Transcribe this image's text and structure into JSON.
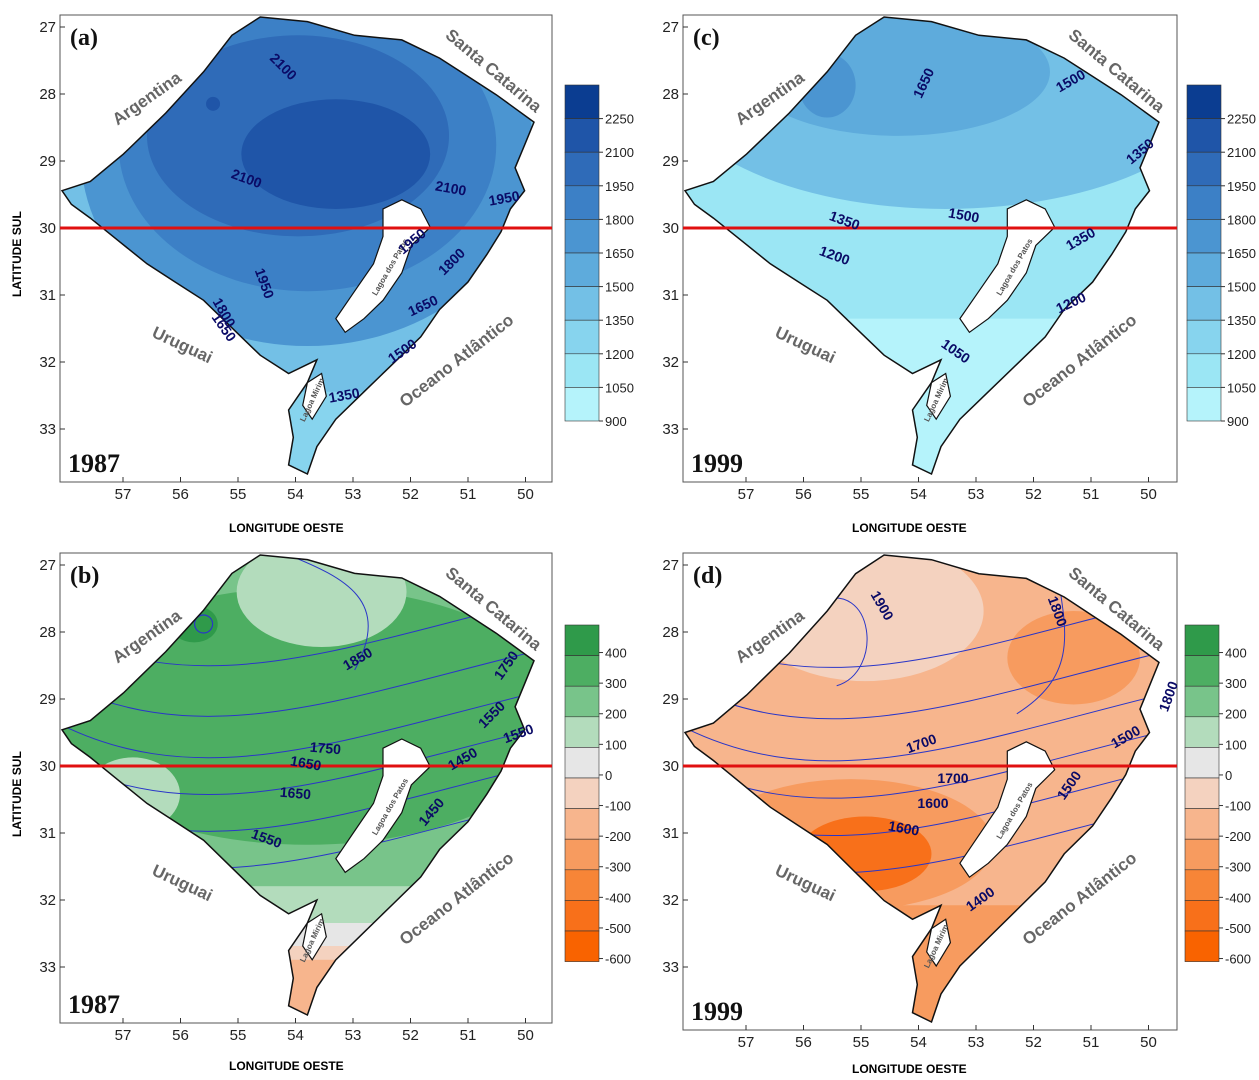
{
  "axes": {
    "ylabel": "LATITUDE SUL",
    "xlabel": "LONGITUDE OESTE",
    "lat_ticks": [
      "27",
      "28",
      "29",
      "30",
      "31",
      "32",
      "33"
    ],
    "lon_ticks": [
      "57",
      "56",
      "55",
      "54",
      "53",
      "52",
      "51",
      "50"
    ]
  },
  "regions": {
    "argentina": "Argentina",
    "santa_catarina": "Santa Catarina",
    "uruguai": "Uruguai",
    "oceano": "Oceano Atlântico",
    "lagoa_patos": "Lagoa dos Patos",
    "lagoa_mirim": "Lagoa Mirim"
  },
  "panels": [
    {
      "id": "a",
      "label": "(a)",
      "year": "1987",
      "scale": "blue",
      "contours": [
        "2100",
        "2100",
        "2100",
        "1950",
        "1950",
        "1950",
        "1800",
        "1800",
        "1650",
        "1650",
        "1500",
        "1350"
      ]
    },
    {
      "id": "c",
      "label": "(c)",
      "year": "1999",
      "scale": "blue",
      "contours": [
        "1650",
        "1500",
        "1350",
        "1350",
        "1500",
        "1350",
        "1200",
        "1200",
        "1050"
      ]
    },
    {
      "id": "b",
      "label": "(b)",
      "year": "1987",
      "scale": "anom-green",
      "contours": [
        "1850",
        "1750",
        "1650",
        "1550",
        "1450",
        "1750",
        "1650",
        "1550",
        "1450",
        "1550"
      ]
    },
    {
      "id": "d",
      "label": "(d)",
      "year": "1999",
      "scale": "anom-orange",
      "contours": [
        "1900",
        "1800",
        "1700",
        "1800",
        "1600",
        "1500",
        "1700",
        "1500",
        "1600",
        "1400"
      ]
    }
  ],
  "legend_blue": {
    "ticks": [
      "2250",
      "2100",
      "1950",
      "1800",
      "1650",
      "1500",
      "1350",
      "1200",
      "1050",
      "900"
    ],
    "colors": [
      "#0b3d91",
      "#1f55a8",
      "#2f6bb8",
      "#3c80c6",
      "#4b95d1",
      "#5eabdc",
      "#73c0e6",
      "#87d4ee",
      "#9be6f4",
      "#b5f3fb"
    ]
  },
  "legend_anom": {
    "ticks": [
      "400",
      "300",
      "200",
      "100",
      "0",
      "-100",
      "-200",
      "-300",
      "-400",
      "-500",
      "-600"
    ],
    "colors": [
      "#2f9a4a",
      "#4dae62",
      "#78c48a",
      "#b3dcbc",
      "#e6e6e6",
      "#f4d2bf",
      "#f7b58d",
      "#f79b5f",
      "#f78537",
      "#f8701a",
      "#f96300"
    ]
  },
  "colors": {
    "red_line": "#e01010",
    "contour": "#2a36c8"
  }
}
